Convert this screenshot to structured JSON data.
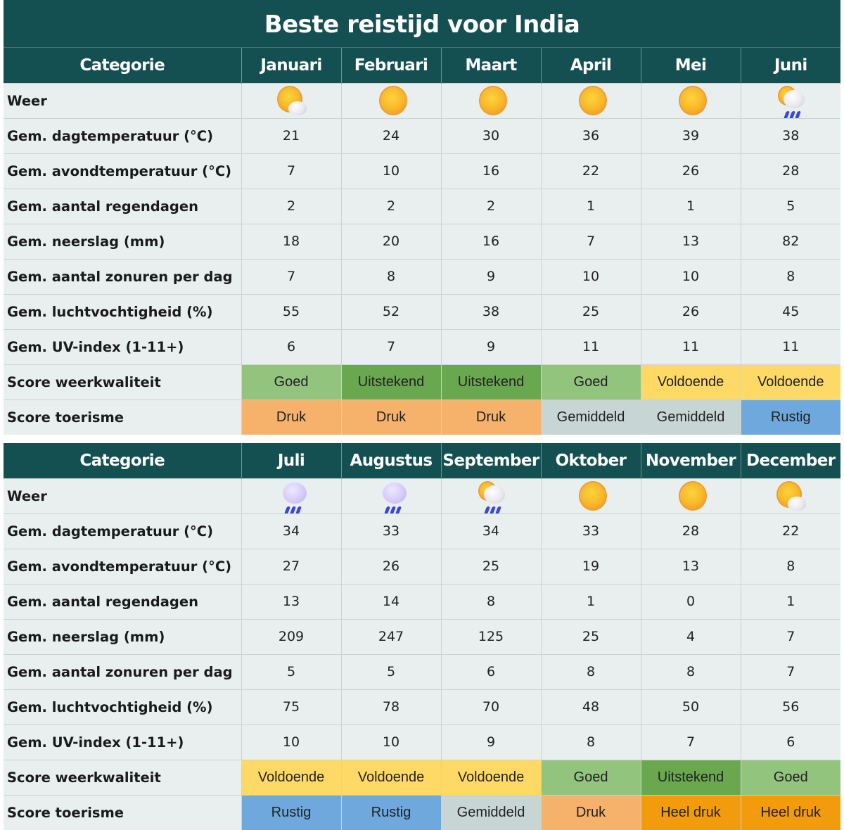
{
  "title": "Beste reistijd voor India",
  "colors": {
    "header_bg": "#144f52",
    "row_bg": "#e8efee",
    "Goed": "#92c47e",
    "Uitstekend": "#6aa84f",
    "Voldoende": "#ffd966",
    "Druk": "#f6b26b",
    "Heel druk": "#f29b0c",
    "Gemiddeld": "#c7d6d4",
    "Rustig": "#6fa8dc"
  },
  "tables": [
    {
      "header": {
        "category": "Categorie",
        "months": [
          "Januari",
          "Februari",
          "Maart",
          "April",
          "Mei",
          "Juni"
        ]
      },
      "weather": [
        "sun-behind-cloud-icon",
        "sun-icon",
        "sun-icon",
        "sun-icon",
        "sun-icon",
        "sun-cloud-rain-icon"
      ],
      "rows": [
        {
          "label": "Gem. dagtemperatuur (°C)",
          "values": [
            "21",
            "24",
            "30",
            "36",
            "39",
            "38"
          ]
        },
        {
          "label": "Gem. avondtemperatuur (°C)",
          "values": [
            "7",
            "10",
            "16",
            "22",
            "26",
            "28"
          ]
        },
        {
          "label": "Gem. aantal regendagen",
          "values": [
            "2",
            "2",
            "2",
            "1",
            "1",
            "5"
          ]
        },
        {
          "label": "Gem. neerslag (mm)",
          "values": [
            "18",
            "20",
            "16",
            "7",
            "13",
            "82"
          ]
        },
        {
          "label": "Gem. aantal zonuren per dag",
          "values": [
            "7",
            "8",
            "9",
            "10",
            "10",
            "8"
          ]
        },
        {
          "label": "Gem. luchtvochtigheid (%)",
          "values": [
            "55",
            "52",
            "38",
            "25",
            "26",
            "45"
          ]
        },
        {
          "label": "Gem. UV-index (1-11+)",
          "values": [
            "6",
            "7",
            "9",
            "11",
            "11",
            "11"
          ]
        }
      ],
      "weather_label": "Weer",
      "score_weather_label": "Score weerkwaliteit",
      "score_weather": [
        "Goed",
        "Uitstekend",
        "Uitstekend",
        "Goed",
        "Voldoende",
        "Voldoende"
      ],
      "score_tourism_label": "Score toerisme",
      "score_tourism": [
        "Druk",
        "Druk",
        "Druk",
        "Gemiddeld",
        "Gemiddeld",
        "Rustig"
      ]
    },
    {
      "header": {
        "category": "Categorie",
        "months": [
          "Juli",
          "Augustus",
          "September",
          "Oktober",
          "November",
          "December"
        ]
      },
      "weather": [
        "cloud-rain-icon",
        "cloud-rain-icon",
        "sun-cloud-rain-icon",
        "sun-icon",
        "sun-icon",
        "sun-behind-cloud-icon"
      ],
      "rows": [
        {
          "label": "Gem. dagtemperatuur (°C)",
          "values": [
            "34",
            "33",
            "34",
            "33",
            "28",
            "22"
          ]
        },
        {
          "label": "Gem. avondtemperatuur (°C)",
          "values": [
            "27",
            "26",
            "25",
            "19",
            "13",
            "8"
          ]
        },
        {
          "label": "Gem. aantal regendagen",
          "values": [
            "13",
            "14",
            "8",
            "1",
            "0",
            "1"
          ]
        },
        {
          "label": "Gem. neerslag (mm)",
          "values": [
            "209",
            "247",
            "125",
            "25",
            "4",
            "7"
          ]
        },
        {
          "label": "Gem. aantal zonuren per dag",
          "values": [
            "5",
            "5",
            "6",
            "8",
            "8",
            "7"
          ]
        },
        {
          "label": "Gem. luchtvochtigheid (%)",
          "values": [
            "75",
            "78",
            "70",
            "48",
            "50",
            "56"
          ]
        },
        {
          "label": "Gem. UV-index (1-11+)",
          "values": [
            "10",
            "10",
            "9",
            "8",
            "7",
            "6"
          ]
        }
      ],
      "weather_label": "Weer",
      "score_weather_label": "Score weerkwaliteit",
      "score_weather": [
        "Voldoende",
        "Voldoende",
        "Voldoende",
        "Goed",
        "Uitstekend",
        "Goed"
      ],
      "score_tourism_label": "Score toerisme",
      "score_tourism": [
        "Rustig",
        "Rustig",
        "Gemiddeld",
        "Druk",
        "Heel druk",
        "Heel druk"
      ]
    }
  ]
}
